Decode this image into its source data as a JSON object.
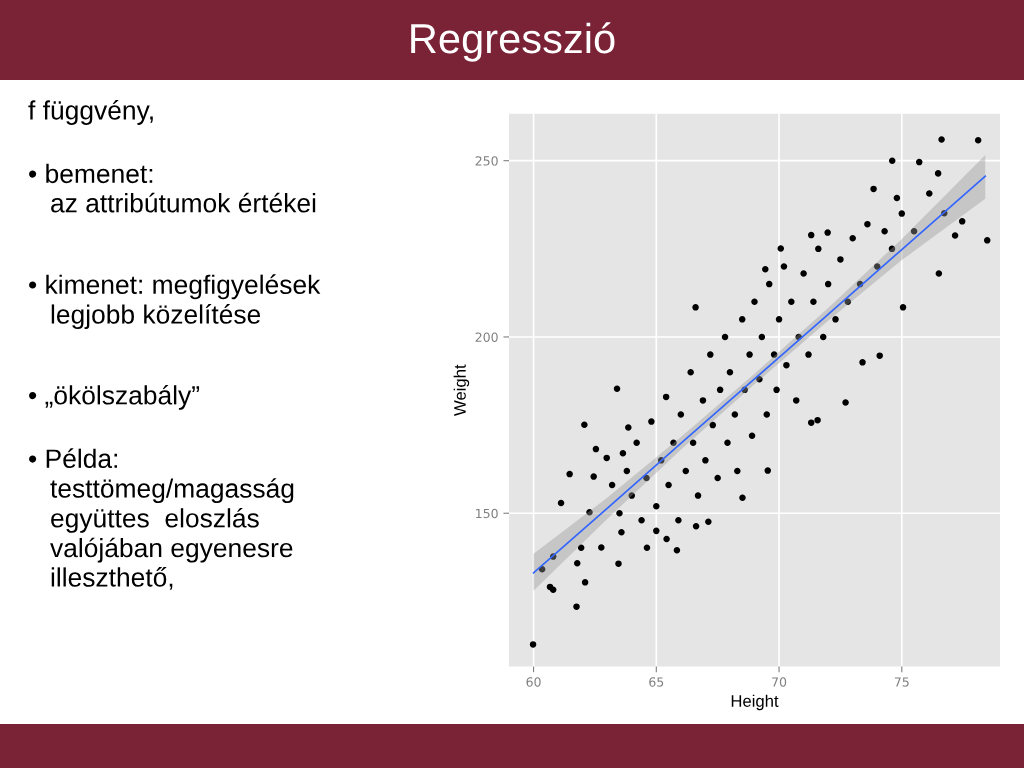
{
  "chart_data": {
    "type": "scatter",
    "title": "Regresszió",
    "annotations": [
      "f függvény,",
      "• bemenet:\n   az attribútumok értékei",
      "• kimenet: megfigyelések\n   legjobb közelítése",
      "• „ökölszabály”",
      "• Példa:\n   testtömeg/magasság\n   együttes  eloszlás\n   valójában egyenesre\n   illeszthető,"
    ],
    "xlabel": "Height",
    "ylabel": "Weight",
    "xlim": [
      59,
      79
    ],
    "ylim": [
      106.5,
      263.3
    ],
    "xticks": [
      60,
      65,
      70,
      75
    ],
    "yticks": [
      150,
      200,
      250
    ],
    "grid": true,
    "series": [
      {
        "color": "#000000",
        "marker": "circle",
        "x": [
          76.62,
          78.11,
          74.61,
          75.71,
          76.48,
          73.85,
          74.8,
          76.12,
          78.48,
          77.46,
          77.17,
          76.51,
          76.73,
          66.6,
          63.4,
          72.71,
          71.98,
          71.31,
          70.07,
          69.44,
          75.05,
          74.1,
          73.4,
          59.98,
          61.75,
          60.67,
          60.8,
          62.1,
          61.78,
          60.35,
          60.8,
          63.46,
          61.47,
          62.07,
          61.12,
          61.94,
          62.76,
          65.84,
          66.62,
          67.12,
          64.62,
          65.42,
          68.51,
          69.54,
          71.57,
          71.31,
          62.28,
          62.45,
          62.54,
          62.98,
          63.86,
          63.64,
          63.58,
          65.0,
          63.2,
          63.5,
          63.8,
          64.0,
          64.2,
          64.4,
          64.6,
          64.8,
          65.0,
          65.2,
          65.4,
          65.5,
          65.7,
          65.9,
          66.0,
          66.2,
          66.4,
          66.5,
          66.7,
          66.9,
          67.0,
          67.2,
          67.3,
          67.5,
          67.6,
          67.8,
          67.9,
          68.0,
          68.2,
          68.3,
          68.5,
          68.6,
          68.8,
          68.9,
          69.0,
          69.2,
          69.3,
          69.5,
          69.6,
          69.8,
          69.9,
          70.0,
          70.2,
          70.3,
          70.5,
          70.7,
          70.8,
          71.0,
          71.2,
          71.4,
          71.6,
          71.8,
          72.0,
          72.3,
          72.5,
          72.8,
          73.0,
          73.3,
          73.6,
          74.0,
          74.3,
          74.6,
          75.0,
          75.5
        ],
        "values": [
          256.0,
          255.8,
          250.0,
          249.6,
          246.4,
          242.0,
          239.4,
          240.7,
          227.4,
          232.8,
          228.8,
          218.0,
          235.1,
          208.4,
          185.3,
          181.4,
          229.6,
          228.9,
          225.1,
          219.2,
          208.4,
          194.7,
          192.8,
          112.8,
          123.5,
          129.1,
          128.3,
          130.4,
          135.8,
          134.1,
          137.7,
          135.7,
          161.1,
          175.1,
          152.9,
          140.2,
          140.3,
          139.5,
          146.3,
          147.6,
          140.2,
          142.7,
          154.4,
          162.1,
          176.4,
          175.7,
          150.3,
          160.4,
          168.2,
          165.7,
          174.3,
          167.0,
          144.6,
          145.0,
          158,
          150,
          162,
          155,
          170,
          148,
          160,
          176,
          152,
          165,
          183,
          158,
          170,
          148,
          178,
          162,
          190,
          170,
          155,
          182,
          165,
          195,
          175,
          160,
          185,
          200,
          170,
          190,
          178,
          162,
          205,
          185,
          195,
          172,
          210,
          188,
          200,
          178,
          215,
          195,
          185,
          205,
          220,
          192,
          210,
          182,
          200,
          218,
          195,
          210,
          225,
          200,
          215,
          205,
          222,
          210,
          228,
          215,
          232,
          220,
          230,
          225,
          235,
          230
        ]
      },
      {
        "type": "line",
        "color": "#3366ff",
        "line_style": "solid",
        "x": [
          60,
          63,
          66,
          69,
          72,
          75,
          78.4
        ],
        "values": [
          133.1,
          151.4,
          169.8,
          188.1,
          206.4,
          224.8,
          245.6
        ],
        "lower": [
          128.0,
          148.4,
          168.0,
          186.6,
          204.6,
          221.8,
          239.2
        ],
        "upper": [
          138.5,
          154.4,
          171.6,
          189.6,
          208.2,
          227.8,
          251.6
        ]
      }
    ]
  }
}
